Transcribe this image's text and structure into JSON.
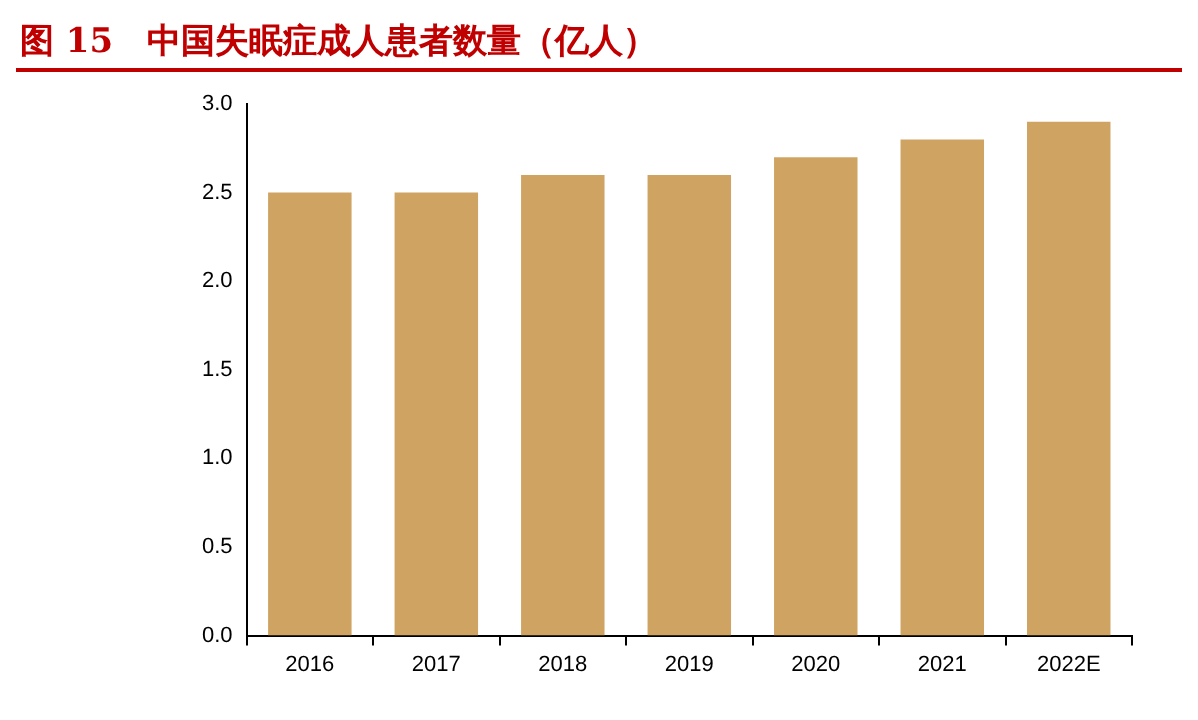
{
  "chart_data": {
    "type": "bar",
    "title": "图 15　中国失眠症成人患者数量（亿人）",
    "categories": [
      "2016",
      "2017",
      "2018",
      "2019",
      "2020",
      "2021",
      "2022E"
    ],
    "values": [
      2.5,
      2.5,
      2.6,
      2.6,
      2.7,
      2.8,
      2.9
    ],
    "color": "#cfa463",
    "ylim": [
      0,
      3
    ],
    "yticks": [
      {
        "value": 0,
        "label": "0.0"
      },
      {
        "value": 0.5,
        "label": "0.5"
      },
      {
        "value": 1,
        "label": "1.0"
      },
      {
        "value": 1.5,
        "label": "1.5"
      },
      {
        "value": 2,
        "label": "2.0"
      },
      {
        "value": 2.5,
        "label": "2.5"
      },
      {
        "value": 3,
        "label": "3.0"
      }
    ],
    "grid": false,
    "legend": false
  }
}
